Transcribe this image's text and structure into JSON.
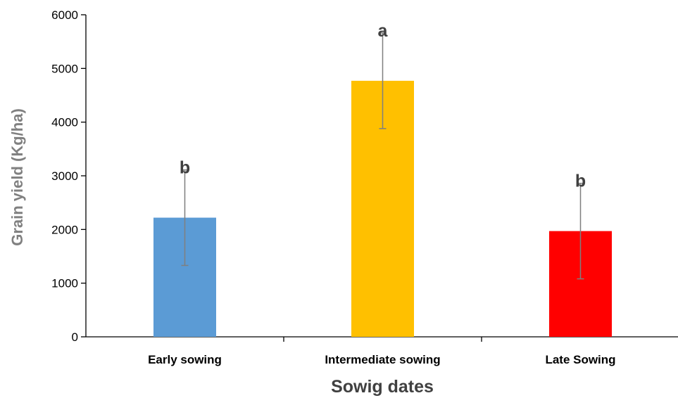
{
  "chart_data": {
    "type": "bar",
    "title": "",
    "xlabel": "Sowig dates",
    "ylabel": "Grain yield (Kg/ha)",
    "categories": [
      "Early sowing",
      "Intermediate sowing",
      "Late Sowing"
    ],
    "values": [
      2220,
      4770,
      1970
    ],
    "error": [
      890,
      890,
      890
    ],
    "significance": [
      "b",
      "a",
      "b"
    ],
    "colors": [
      "#5B9BD5",
      "#FFC000",
      "#FF0000"
    ],
    "ylim": [
      0,
      6000
    ],
    "yticks": [
      0,
      1000,
      2000,
      3000,
      4000,
      5000,
      6000
    ],
    "ytick_labels": [
      "0",
      "1000",
      "2000",
      "3000",
      "4000",
      "5000",
      "6000"
    ],
    "grid": false,
    "legend": "none"
  }
}
